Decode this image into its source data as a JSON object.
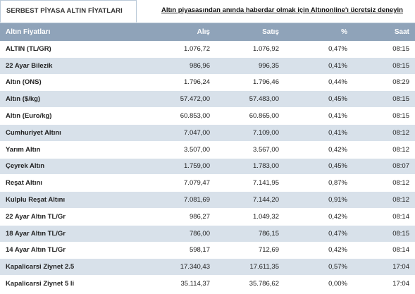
{
  "tab": {
    "label": "SERBEST PİYASA ALTIN FİYATLARI"
  },
  "promo": {
    "text": "Altın piyasasından anında haberdar olmak için Altınonline'ı ücretsiz deneyin"
  },
  "table": {
    "columns": [
      "Altın Fiyatları",
      "Alış",
      "Satış",
      "%",
      "Saat"
    ],
    "rows": [
      [
        "ALTIN (TL/GR)",
        "1.076,72",
        "1.076,92",
        "0,47%",
        "08:15"
      ],
      [
        "22 Ayar Bilezik",
        "986,96",
        "996,35",
        "0,41%",
        "08:15"
      ],
      [
        "Altın (ONS)",
        "1.796,24",
        "1.796,46",
        "0,44%",
        "08:29"
      ],
      [
        "Altın ($/kg)",
        "57.472,00",
        "57.483,00",
        "0,45%",
        "08:15"
      ],
      [
        "Altın (Euro/kg)",
        "60.853,00",
        "60.865,00",
        "0,41%",
        "08:15"
      ],
      [
        "Cumhuriyet Altını",
        "7.047,00",
        "7.109,00",
        "0,41%",
        "08:12"
      ],
      [
        "Yarım Altın",
        "3.507,00",
        "3.567,00",
        "0,42%",
        "08:12"
      ],
      [
        "Çeyrek Altın",
        "1.759,00",
        "1.783,00",
        "0,45%",
        "08:07"
      ],
      [
        "Reşat Altını",
        "7.079,47",
        "7.141,95",
        "0,87%",
        "08:12"
      ],
      [
        "Kulplu Reşat Altını",
        "7.081,69",
        "7.144,20",
        "0,91%",
        "08:12"
      ],
      [
        "22 Ayar Altın TL/Gr",
        "986,27",
        "1.049,32",
        "0,42%",
        "08:14"
      ],
      [
        "18 Ayar Altın TL/Gr",
        "786,00",
        "786,15",
        "0,47%",
        "08:15"
      ],
      [
        "14 Ayar Altın TL/Gr",
        "598,17",
        "712,69",
        "0,42%",
        "08:14"
      ],
      [
        "Kapalicarsi Ziynet 2.5",
        "17.340,43",
        "17.611,35",
        "0,57%",
        "17:04"
      ],
      [
        "Kapalicarsi Ziynet 5 li",
        "35.114,37",
        "35.786,62",
        "0,00%",
        "17:04"
      ]
    ]
  }
}
